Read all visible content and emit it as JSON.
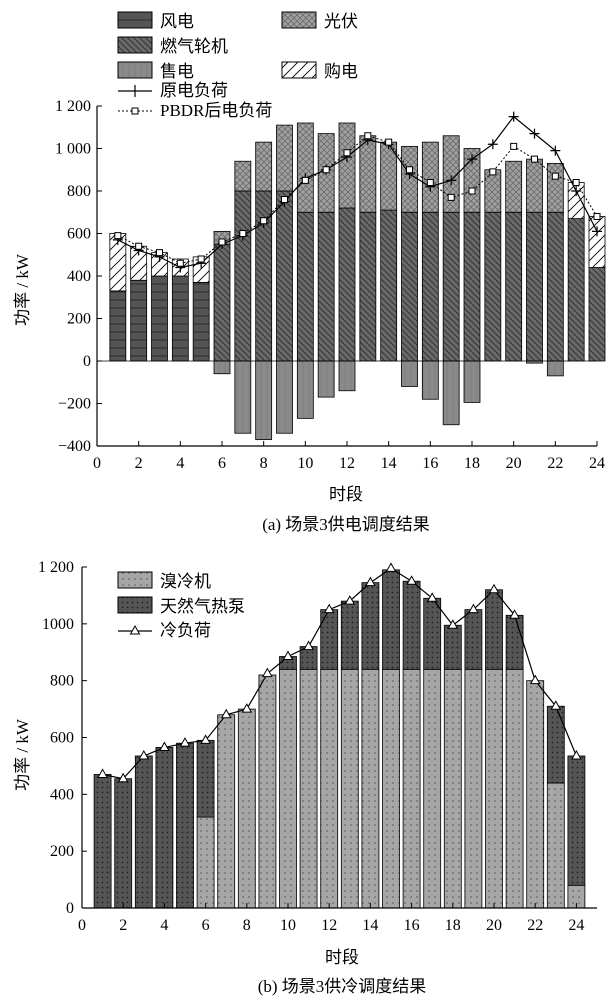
{
  "chart_data": [
    {
      "type": "bar",
      "caption": "(a)  场景3供电调度结果",
      "xlabel": "时段",
      "ylabel": "功率 / kW",
      "xlim": [
        0,
        24
      ],
      "ylim": [
        -400,
        1200
      ],
      "xticks": [
        0,
        2,
        4,
        6,
        8,
        10,
        12,
        14,
        16,
        18,
        20,
        22,
        24
      ],
      "xtick_labels": [
        "0",
        "2",
        "4",
        "6",
        "8",
        "10",
        "12",
        "14",
        "16",
        "18",
        "20",
        "22",
        "24"
      ],
      "yticks": [
        -400,
        -200,
        0,
        200,
        400,
        600,
        800,
        1000,
        1200
      ],
      "ytick_labels": [
        "−400",
        "−200",
        "0",
        "200",
        "400",
        "600",
        "800",
        "1 000",
        "1 200"
      ],
      "categories": [
        1,
        2,
        3,
        4,
        5,
        6,
        7,
        8,
        9,
        10,
        11,
        12,
        13,
        14,
        15,
        16,
        17,
        18,
        19,
        20,
        21,
        22,
        23,
        24
      ],
      "series": [
        {
          "name": "风电",
          "role": "bar",
          "fill": "#555555",
          "values": [
            330,
            380,
            400,
            400,
            370,
            0,
            0,
            0,
            0,
            0,
            0,
            0,
            0,
            0,
            0,
            0,
            0,
            0,
            0,
            0,
            0,
            0,
            0,
            0
          ]
        },
        {
          "name": "燃气轮机",
          "role": "bar",
          "fill": "#6a6a6a",
          "values": [
            0,
            0,
            0,
            0,
            0,
            550,
            800,
            800,
            800,
            700,
            700,
            720,
            700,
            710,
            700,
            700,
            700,
            700,
            700,
            700,
            700,
            700,
            670,
            440
          ]
        },
        {
          "name": "光伏",
          "role": "bar",
          "fill": "#9a9a9a",
          "values": [
            0,
            0,
            0,
            0,
            0,
            60,
            140,
            230,
            310,
            420,
            370,
            400,
            360,
            320,
            310,
            330,
            360,
            300,
            200,
            240,
            250,
            230,
            0,
            0
          ]
        },
        {
          "name": "售电",
          "role": "bar",
          "fill": "#8a8a8a",
          "values": [
            0,
            0,
            0,
            0,
            0,
            -60,
            -340,
            -370,
            -340,
            -270,
            -170,
            -140,
            0,
            0,
            -120,
            -180,
            -300,
            -195,
            0,
            0,
            -10,
            -70,
            0,
            0
          ]
        },
        {
          "name": "购电",
          "role": "bar",
          "fill": "#ffffff",
          "values": [
            270,
            160,
            110,
            80,
            120,
            0,
            0,
            0,
            0,
            0,
            0,
            0,
            0,
            0,
            0,
            0,
            0,
            0,
            0,
            0,
            0,
            0,
            170,
            240
          ]
        },
        {
          "name": "原电负荷",
          "role": "line",
          "values": [
            570,
            520,
            490,
            440,
            460,
            550,
            590,
            650,
            750,
            860,
            900,
            960,
            1040,
            1020,
            880,
            820,
            850,
            950,
            1020,
            1150,
            1070,
            990,
            800,
            610
          ]
        },
        {
          "name": "PBDR后电负荷",
          "role": "line",
          "values": [
            590,
            540,
            510,
            460,
            480,
            560,
            600,
            660,
            760,
            850,
            900,
            980,
            1060,
            1030,
            900,
            840,
            770,
            800,
            890,
            1010,
            950,
            870,
            840,
            680
          ]
        }
      ]
    },
    {
      "type": "bar",
      "caption": "(b)  场景3供冷调度结果",
      "xlabel": "时段",
      "ylabel": "功率 / kW",
      "xlim": [
        0,
        25
      ],
      "ylim": [
        0,
        1200
      ],
      "xticks": [
        0,
        2,
        4,
        6,
        8,
        10,
        12,
        14,
        16,
        18,
        20,
        22,
        24
      ],
      "xtick_labels": [
        "0",
        "2",
        "4",
        "6",
        "8",
        "10",
        "12",
        "14",
        "16",
        "18",
        "20",
        "22",
        "24"
      ],
      "yticks": [
        0,
        200,
        400,
        600,
        800,
        1000,
        1200
      ],
      "ytick_labels": [
        "0",
        "200",
        "400",
        "600",
        "800",
        "1000",
        "1 200"
      ],
      "categories": [
        1,
        2,
        3,
        4,
        5,
        6,
        7,
        8,
        9,
        10,
        11,
        12,
        13,
        14,
        15,
        16,
        17,
        18,
        19,
        20,
        21,
        22,
        23,
        24
      ],
      "series": [
        {
          "name": "溴冷机",
          "role": "bar",
          "fill": "#a6a6a6",
          "values": [
            0,
            0,
            0,
            0,
            0,
            320,
            680,
            700,
            820,
            840,
            840,
            840,
            840,
            840,
            840,
            840,
            840,
            840,
            840,
            840,
            840,
            800,
            440,
            80
          ]
        },
        {
          "name": "天然气热泵",
          "role": "bar",
          "fill": "#555555",
          "values": [
            470,
            455,
            535,
            565,
            580,
            270,
            0,
            0,
            0,
            45,
            80,
            210,
            240,
            305,
            350,
            310,
            250,
            155,
            210,
            280,
            190,
            0,
            270,
            455
          ]
        },
        {
          "name": "冷负荷",
          "role": "line",
          "values": [
            470,
            455,
            535,
            565,
            580,
            590,
            680,
            700,
            825,
            885,
            920,
            1050,
            1080,
            1145,
            1195,
            1150,
            1090,
            995,
            1050,
            1120,
            1030,
            800,
            710,
            535
          ]
        }
      ]
    }
  ]
}
